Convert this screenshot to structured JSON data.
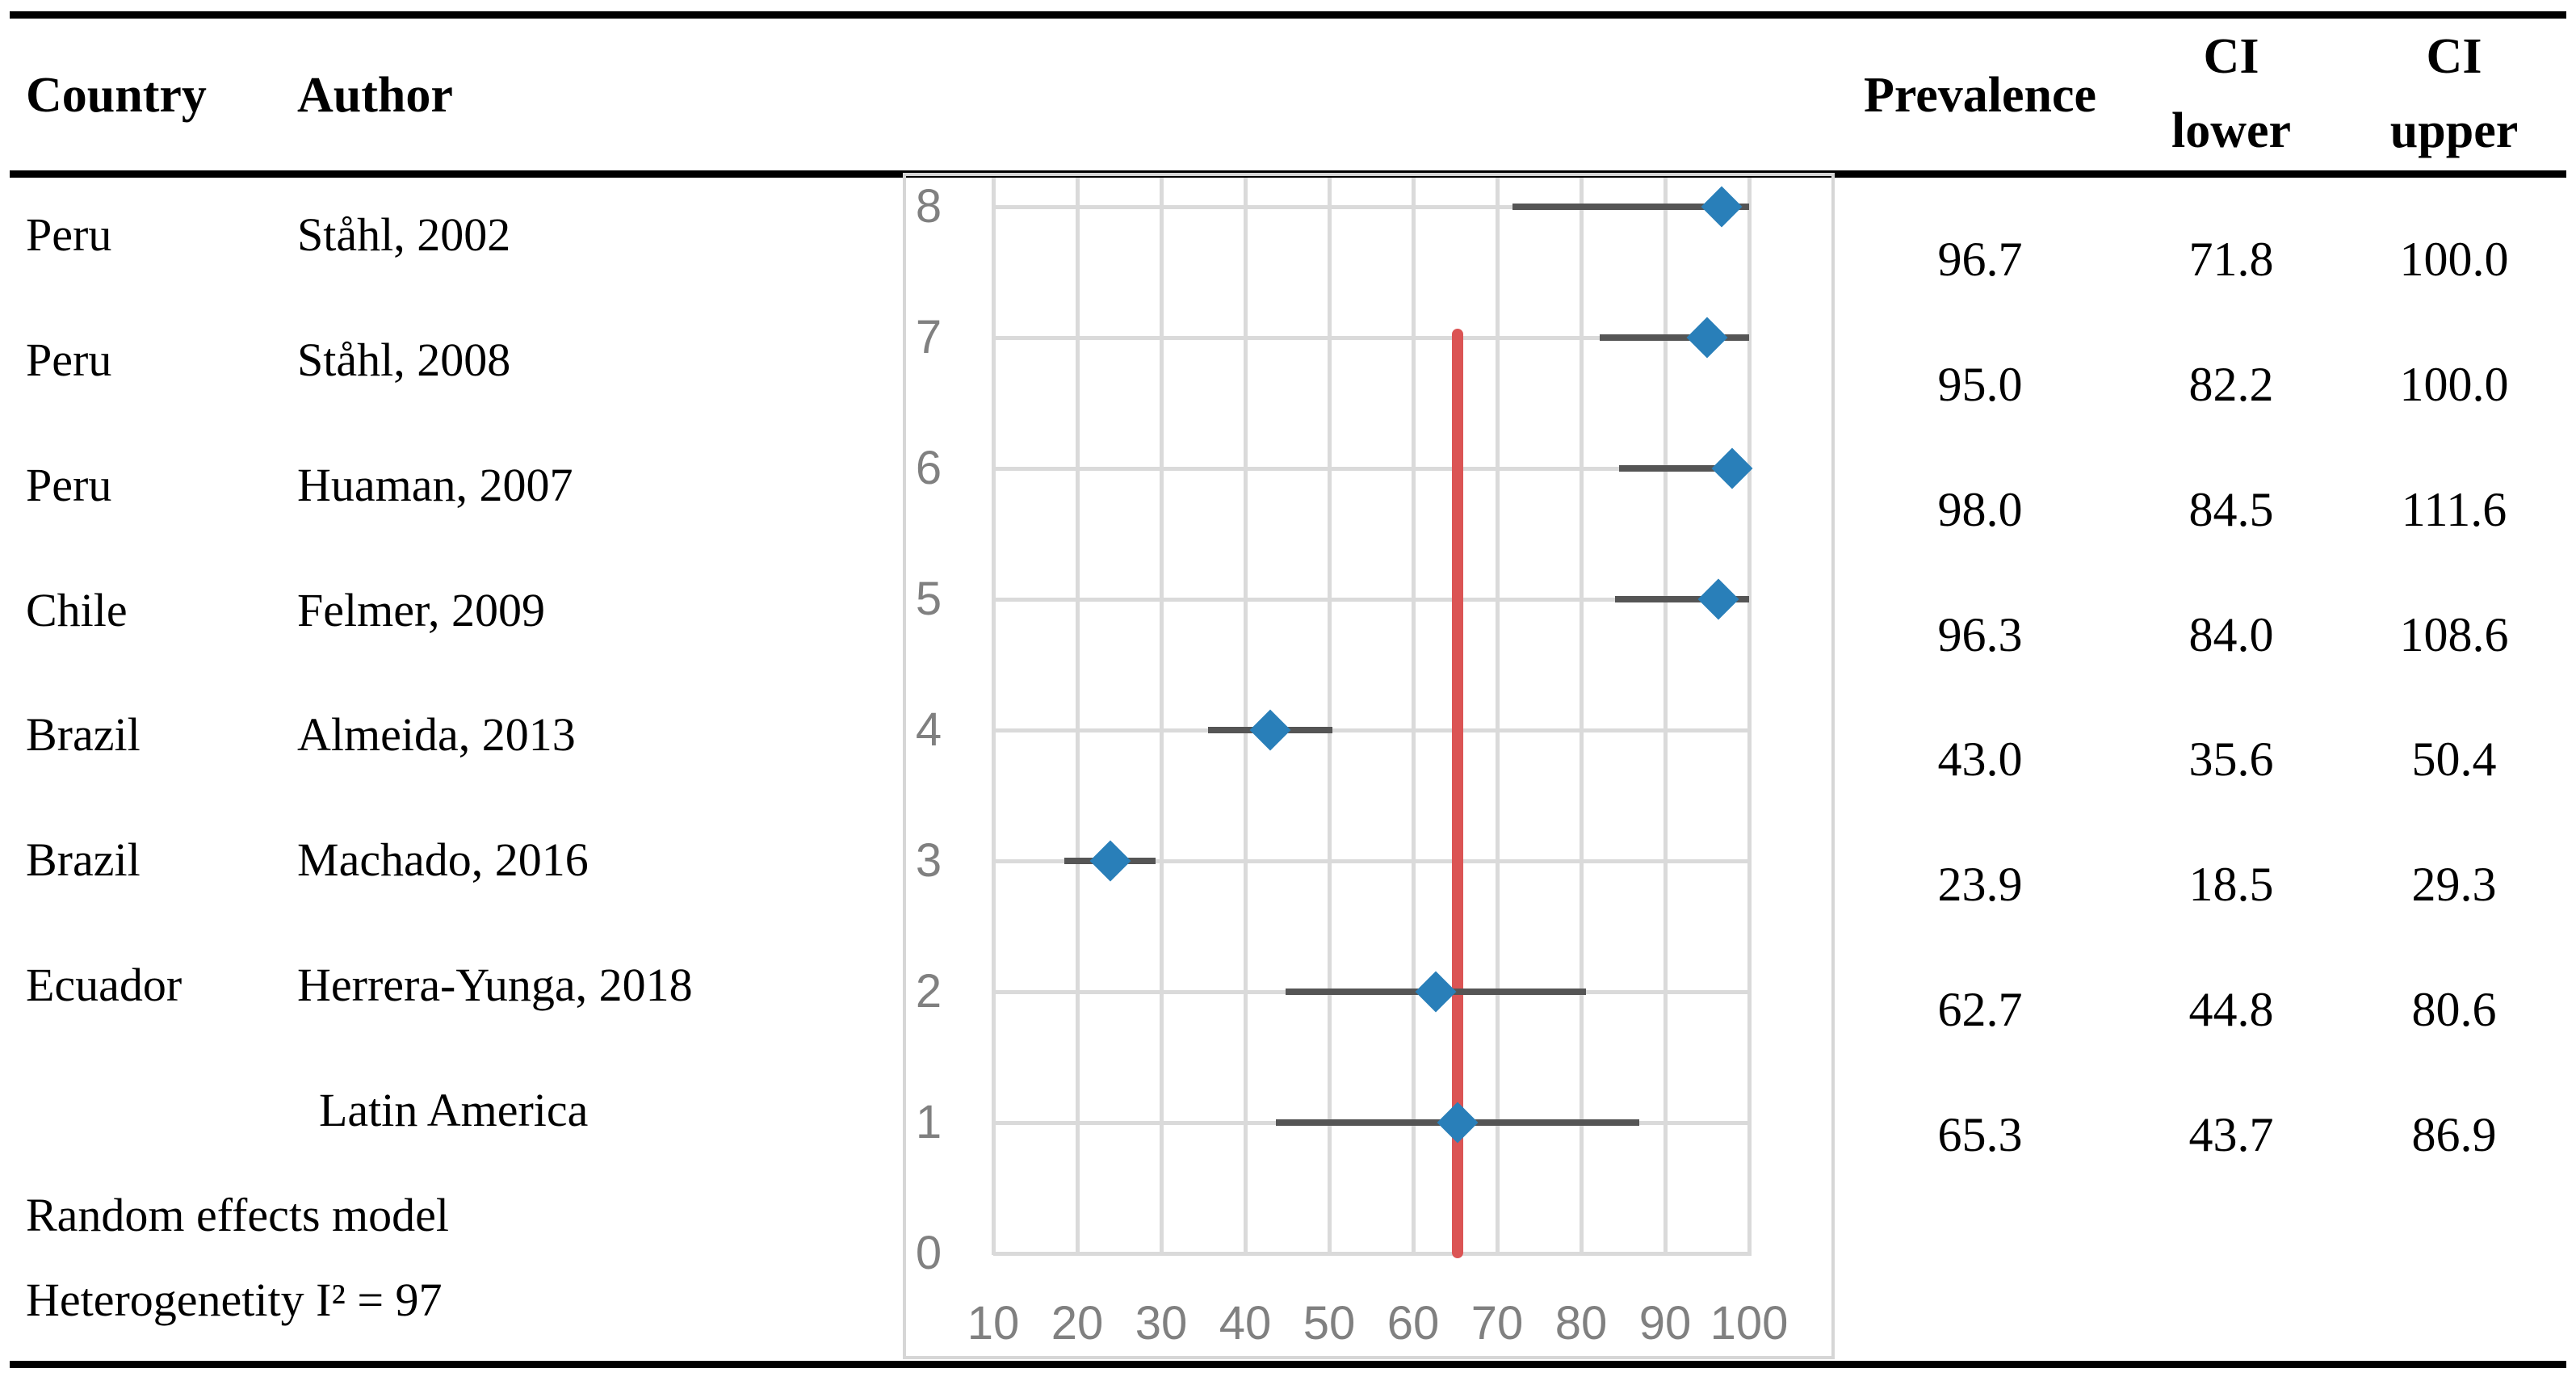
{
  "table": {
    "headers": {
      "country": "Country",
      "author": "Author",
      "prevalence": "Prevalence",
      "ci_lower_line1": "CI",
      "ci_lower_line2": "lower",
      "ci_upper_line1": "CI",
      "ci_upper_line2": "upper"
    },
    "rows": [
      {
        "country": "Peru",
        "author": "Ståhl, 2002",
        "prevalence": "96.7",
        "ci_lower": "71.8",
        "ci_upper": "100.0"
      },
      {
        "country": "Peru",
        "author": "Ståhl,  2008",
        "prevalence": "95.0",
        "ci_lower": "82.2",
        "ci_upper": "100.0"
      },
      {
        "country": "Peru",
        "author": "Huaman, 2007",
        "prevalence": "98.0",
        "ci_lower": "84.5",
        "ci_upper": "111.6"
      },
      {
        "country": "Chile",
        "author": "Felmer, 2009",
        "prevalence": "96.3",
        "ci_lower": "84.0",
        "ci_upper": "108.6"
      },
      {
        "country": "Brazil",
        "author": "Almeida, 2013",
        "prevalence": "43.0",
        "ci_lower": "35.6",
        "ci_upper": "50.4"
      },
      {
        "country": "Brazil",
        "author": "Machado, 2016",
        "prevalence": "23.9",
        "ci_lower": "18.5",
        "ci_upper": "29.3"
      },
      {
        "country": "Ecuador",
        "author": "Herrera-Yunga, 2018",
        "prevalence": "62.7",
        "ci_lower": "44.8",
        "ci_upper": "80.6"
      },
      {
        "country": "",
        "author": "Latin America",
        "prevalence": "65.3",
        "ci_lower": "43.7",
        "ci_upper": "86.9"
      }
    ],
    "footer": [
      "Random effects model",
      "Heterogenetity I² = 97"
    ]
  },
  "chart_data": {
    "type": "scatter",
    "title": "",
    "xlabel": "",
    "ylabel": "",
    "x_axis": {
      "min": 10,
      "max": 100,
      "tick_interval": 10,
      "tick_labels": [
        "10",
        "20",
        "30",
        "40",
        "50",
        "60",
        "70",
        "80",
        "90",
        "100"
      ]
    },
    "y_axis": {
      "min": 0,
      "max": 8,
      "tick_interval": 1,
      "tick_labels": [
        "0",
        "1",
        "2",
        "3",
        "4",
        "5",
        "6",
        "7",
        "8"
      ]
    },
    "grid": true,
    "legend": false,
    "series": [
      {
        "name": "prevalence-with-95ci",
        "marker": "diamond",
        "points": [
          {
            "y": 8,
            "x": 96.7,
            "ci_lower": 71.8,
            "ci_upper": 100.0,
            "label": "Ståhl, 2002"
          },
          {
            "y": 7,
            "x": 95.0,
            "ci_lower": 82.2,
            "ci_upper": 100.0,
            "label": "Ståhl, 2008"
          },
          {
            "y": 6,
            "x": 98.0,
            "ci_lower": 84.5,
            "ci_upper": 111.6,
            "label": "Huaman, 2007"
          },
          {
            "y": 5,
            "x": 96.3,
            "ci_lower": 84.0,
            "ci_upper": 108.6,
            "label": "Felmer, 2009"
          },
          {
            "y": 4,
            "x": 43.0,
            "ci_lower": 35.6,
            "ci_upper": 50.4,
            "label": "Almeida, 2013"
          },
          {
            "y": 3,
            "x": 23.9,
            "ci_lower": 18.5,
            "ci_upper": 29.3,
            "label": "Machado, 2016"
          },
          {
            "y": 2,
            "x": 62.7,
            "ci_lower": 44.8,
            "ci_upper": 80.6,
            "label": "Herrera-Yunga, 2018"
          },
          {
            "y": 1,
            "x": 65.3,
            "ci_lower": 43.7,
            "ci_upper": 86.9,
            "label": "Latin America"
          }
        ]
      }
    ],
    "reference_line": {
      "x": 65.3,
      "from_y": 0,
      "to_y": 7
    },
    "colors": {
      "marker": "#297FB9",
      "error_bar": "#555555",
      "reference_line": "#DB5454",
      "gridline": "#DADADA",
      "axis_text": "#808080",
      "plot_border": "#D6D6D6"
    }
  }
}
